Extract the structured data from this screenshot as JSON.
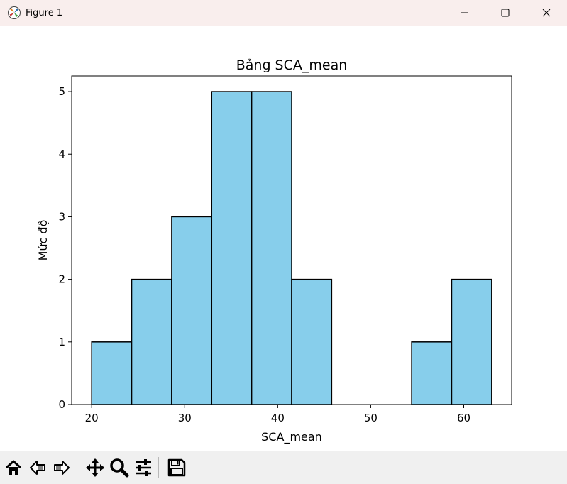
{
  "window": {
    "title": "Figure 1",
    "icons": {
      "app": "matplotlib-icon",
      "minimize": "minimize-icon",
      "maximize": "maximize-icon",
      "close": "close-icon"
    }
  },
  "toolbar": {
    "buttons": [
      "home-icon",
      "back-icon",
      "forward-icon",
      "pan-icon",
      "zoom-icon",
      "configure-subplots-icon",
      "save-icon"
    ]
  },
  "chart_data": {
    "type": "bar",
    "subtype": "histogram",
    "title": "Bảng SCA_mean",
    "xlabel": "SCA_mean",
    "ylabel": "Mức độ",
    "bin_edges": [
      20.0,
      24.3,
      28.6,
      32.9,
      37.2,
      41.5,
      45.8,
      50.1,
      54.4,
      58.7,
      63.0
    ],
    "values": [
      1,
      2,
      3,
      5,
      5,
      2,
      0,
      0,
      1,
      2
    ],
    "xlim": [
      17.85,
      65.15
    ],
    "ylim": [
      0,
      5.25
    ],
    "xticks": [
      20,
      30,
      40,
      50,
      60
    ],
    "yticks": [
      0,
      1,
      2,
      3,
      4,
      5
    ],
    "bar_color": "#87ceeb",
    "edge_color": "#000000",
    "grid": false,
    "legend": false
  }
}
